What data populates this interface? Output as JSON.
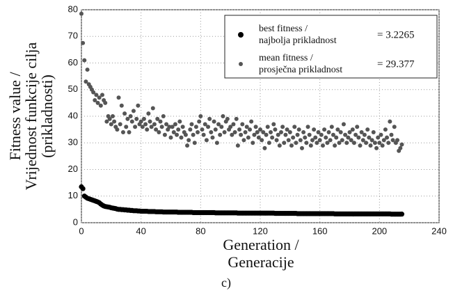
{
  "chart_data": {
    "type": "scatter",
    "ylabel": [
      "Fitness value /",
      "Vrijednost funkcije cilja",
      "(prikladnosti)"
    ],
    "xlabel": [
      "Generation /",
      "Generacije"
    ],
    "caption": "c)",
    "xlim": [
      0,
      240
    ],
    "xticks": [
      0,
      40,
      80,
      120,
      160,
      200,
      240
    ],
    "ylim": [
      0,
      80
    ],
    "yticks": [
      0,
      10,
      20,
      30,
      40,
      50,
      60,
      70,
      80
    ],
    "grid": true,
    "legend": "upper right",
    "x": [
      0,
      1,
      2,
      3,
      4,
      5,
      6,
      7,
      8,
      9,
      10,
      11,
      12,
      13,
      14,
      15,
      16,
      17,
      18,
      19,
      20,
      21,
      22,
      23,
      24,
      25,
      26,
      27,
      28,
      29,
      30,
      31,
      32,
      33,
      34,
      35,
      36,
      37,
      38,
      39,
      40,
      41,
      42,
      43,
      44,
      45,
      46,
      47,
      48,
      49,
      50,
      51,
      52,
      53,
      54,
      55,
      56,
      57,
      58,
      59,
      60,
      61,
      62,
      63,
      64,
      65,
      66,
      67,
      68,
      69,
      70,
      71,
      72,
      73,
      74,
      75,
      76,
      77,
      78,
      79,
      80,
      81,
      82,
      83,
      84,
      85,
      86,
      87,
      88,
      89,
      90,
      91,
      92,
      93,
      94,
      95,
      96,
      97,
      98,
      99,
      100,
      101,
      102,
      103,
      104,
      105,
      106,
      107,
      108,
      109,
      110,
      111,
      112,
      113,
      114,
      115,
      116,
      117,
      118,
      119,
      120,
      121,
      122,
      123,
      124,
      125,
      126,
      127,
      128,
      129,
      130,
      131,
      132,
      133,
      134,
      135,
      136,
      137,
      138,
      139,
      140,
      141,
      142,
      143,
      144,
      145,
      146,
      147,
      148,
      149,
      150,
      151,
      152,
      153,
      154,
      155,
      156,
      157,
      158,
      159,
      160,
      161,
      162,
      163,
      164,
      165,
      166,
      167,
      168,
      169,
      170,
      171,
      172,
      173,
      174,
      175,
      176,
      177,
      178,
      179,
      180,
      181,
      182,
      183,
      184,
      185,
      186,
      187,
      188,
      189,
      190,
      191,
      192,
      193,
      194,
      195,
      196,
      197,
      198,
      199,
      200,
      201,
      202,
      203,
      204,
      205,
      206,
      207,
      208,
      209,
      210,
      211,
      212,
      213,
      214,
      215
    ],
    "series": [
      {
        "name": "best fitness / najbolja prikladnost",
        "label": "= 3.2265",
        "color": "#000000",
        "values": [
          13.5,
          12.8,
          10,
          9.6,
          9.2,
          9,
          8.8,
          8.6,
          8.4,
          8.2,
          8,
          7.8,
          7.5,
          7,
          6.6,
          6.3,
          6.1,
          6,
          5.9,
          5.8,
          5.6,
          5.5,
          5.4,
          5.3,
          5.1,
          5,
          5,
          4.9,
          4.9,
          4.8,
          4.8,
          4.7,
          4.7,
          4.6,
          4.6,
          4.5,
          4.5,
          4.5,
          4.4,
          4.4,
          4.3,
          4.3,
          4.3,
          4.3,
          4.3,
          4.2,
          4.2,
          4.2,
          4.2,
          4.2,
          4.1,
          4.1,
          4.1,
          4.1,
          4.1,
          4,
          4,
          4,
          4,
          4,
          4,
          4,
          4,
          4,
          4,
          3.9,
          3.9,
          3.9,
          3.9,
          3.9,
          3.9,
          3.9,
          3.9,
          3.9,
          3.9,
          3.8,
          3.8,
          3.8,
          3.8,
          3.8,
          3.8,
          3.8,
          3.8,
          3.8,
          3.8,
          3.8,
          3.8,
          3.8,
          3.8,
          3.8,
          3.7,
          3.7,
          3.7,
          3.7,
          3.7,
          3.7,
          3.7,
          3.7,
          3.7,
          3.7,
          3.7,
          3.7,
          3.7,
          3.7,
          3.7,
          3.6,
          3.6,
          3.6,
          3.6,
          3.6,
          3.6,
          3.6,
          3.6,
          3.6,
          3.6,
          3.6,
          3.6,
          3.6,
          3.6,
          3.6,
          3.6,
          3.6,
          3.6,
          3.6,
          3.6,
          3.6,
          3.6,
          3.6,
          3.6,
          3.6,
          3.5,
          3.5,
          3.5,
          3.5,
          3.5,
          3.5,
          3.5,
          3.5,
          3.5,
          3.5,
          3.5,
          3.5,
          3.5,
          3.5,
          3.5,
          3.4,
          3.4,
          3.4,
          3.4,
          3.4,
          3.4,
          3.4,
          3.4,
          3.4,
          3.4,
          3.4,
          3.4,
          3.4,
          3.4,
          3.4,
          3.4,
          3.4,
          3.4,
          3.4,
          3.4,
          3.4,
          3.4,
          3.4,
          3.4,
          3.4,
          3.3,
          3.3,
          3.3,
          3.3,
          3.3,
          3.3,
          3.3,
          3.3,
          3.3,
          3.3,
          3.3,
          3.3,
          3.3,
          3.3,
          3.3,
          3.3,
          3.3,
          3.3,
          3.3,
          3.3,
          3.3,
          3.3,
          3.3,
          3.3,
          3.3,
          3.3,
          3.3,
          3.3,
          3.3,
          3.3,
          3.3,
          3.3,
          3.3,
          3.3,
          3.3,
          3.3,
          3.3,
          3.3,
          3.2,
          3.2,
          3.2,
          3.2,
          3.2,
          3.2,
          3.2,
          3.2265
        ]
      },
      {
        "name": "mean fitness / prosječna prikladnost",
        "label": "= 29.377",
        "color": "#555555",
        "values": [
          78.5,
          67.5,
          61,
          53,
          57.5,
          52,
          51,
          50,
          49,
          46,
          48,
          45,
          47,
          44,
          48,
          46,
          45,
          38,
          40,
          39,
          37,
          40,
          38,
          36,
          35,
          47,
          37,
          44,
          34,
          41,
          36,
          39,
          34,
          40,
          38,
          42,
          36,
          39,
          44,
          37,
          38,
          36,
          39,
          37,
          35,
          41,
          38,
          36,
          43,
          37,
          35,
          39,
          34,
          38,
          36,
          40,
          33,
          37,
          35,
          36,
          32,
          36,
          34,
          37,
          33,
          35,
          38,
          32,
          36,
          34,
          33,
          29,
          31,
          35,
          37,
          33,
          30,
          36,
          34,
          38,
          40,
          35,
          33,
          37,
          31,
          36,
          39,
          34,
          32,
          38,
          35,
          30,
          37,
          33,
          36,
          40,
          34,
          38,
          39,
          35,
          36,
          33,
          37,
          34,
          39,
          29,
          35,
          33,
          37,
          31,
          34,
          36,
          32,
          35,
          38,
          30,
          33,
          36,
          34,
          32,
          35,
          31,
          34,
          28,
          33,
          36,
          30,
          34,
          32,
          37,
          35,
          31,
          33,
          29,
          34,
          36,
          30,
          33,
          35,
          31,
          34,
          29,
          32,
          36,
          30,
          33,
          35,
          31,
          28,
          34,
          32,
          30,
          36,
          33,
          29,
          31,
          35,
          32,
          30,
          34,
          31,
          33,
          29,
          35,
          32,
          30,
          34,
          31,
          36,
          33,
          29,
          32,
          35,
          30,
          34,
          31,
          37,
          33,
          30,
          32,
          34,
          31,
          35,
          30,
          33,
          36,
          32,
          29,
          34,
          31,
          33,
          30,
          35,
          32,
          29,
          31,
          34,
          30,
          28,
          32,
          30,
          33,
          29,
          31,
          35,
          32,
          30,
          38,
          33,
          31,
          36,
          30,
          31,
          27,
          28,
          29.377
        ]
      }
    ]
  }
}
